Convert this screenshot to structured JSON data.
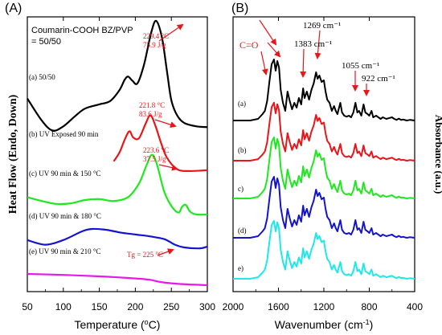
{
  "chart_data": [
    {
      "panel_label": "(A)",
      "type": "line",
      "xlabel": "Temperature (°C)",
      "xlabel_parts": {
        "base": "Temperature (",
        "sup": "o",
        "tail": "C)"
      },
      "ylabel": "Heat Flow (Endo, Down)",
      "xlim": [
        50,
        300
      ],
      "x_ticks": [
        "50",
        "100",
        "150",
        "200",
        "250",
        "300"
      ],
      "grid": false,
      "legend_lines": [
        "Coumarin-COOH BZ/PVP",
        "= 50/50"
      ],
      "series": [
        {
          "name": "(a) 50/50",
          "color": "#000000",
          "points": [
            [
              50,
              -0.6
            ],
            [
              70,
              -1.9
            ],
            [
              85,
              -2.5
            ],
            [
              100,
              -2.25
            ],
            [
              115,
              -1.7
            ],
            [
              130,
              -1.2
            ],
            [
              150,
              -0.95
            ],
            [
              165,
              -0.75
            ],
            [
              178,
              -0.1
            ],
            [
              185,
              0.5
            ],
            [
              190,
              0.7
            ],
            [
              196,
              0.45
            ],
            [
              203,
              0.3
            ],
            [
              212,
              1.4
            ],
            [
              222,
              3.3
            ],
            [
              229,
              4.0
            ],
            [
              237,
              3.0
            ],
            [
              244,
              1.0
            ],
            [
              250,
              -0.7
            ],
            [
              258,
              -1.6
            ],
            [
              268,
              -2.05
            ],
            [
              285,
              -2.25
            ],
            [
              300,
              -2.3
            ]
          ]
        },
        {
          "name": "(b) UV Exposed 90 min",
          "color": "#e8161a",
          "points": [
            [
              170,
              -0.4
            ],
            [
              178,
              0.1
            ],
            [
              186,
              0.9
            ],
            [
              192,
              1.3
            ],
            [
              197,
              0.95
            ],
            [
              205,
              0.9
            ],
            [
              214,
              1.7
            ],
            [
              221,
              2.2
            ],
            [
              228,
              1.6
            ],
            [
              236,
              0.6
            ],
            [
              244,
              -0.2
            ],
            [
              258,
              -0.85
            ],
            [
              275,
              -0.95
            ],
            [
              300,
              -0.9
            ]
          ]
        },
        {
          "name": "(c) UV 90 min & 150 °C",
          "color": "#1ee81e",
          "points": [
            [
              50,
              -0.1
            ],
            [
              70,
              -0.3
            ],
            [
              90,
              -0.45
            ],
            [
              110,
              -0.42
            ],
            [
              130,
              -0.25
            ],
            [
              150,
              -0.2
            ],
            [
              170,
              -0.3
            ],
            [
              190,
              -0.1
            ],
            [
              205,
              0.6
            ],
            [
              215,
              1.5
            ],
            [
              223,
              2.1
            ],
            [
              230,
              1.6
            ],
            [
              240,
              0.2
            ],
            [
              250,
              -0.55
            ],
            [
              260,
              -0.9
            ],
            [
              265,
              -0.6
            ],
            [
              270,
              -0.5
            ],
            [
              276,
              -0.85
            ],
            [
              285,
              -1.0
            ],
            [
              300,
              -1.0
            ]
          ]
        },
        {
          "name": "(d) UV 90 min & 180 °C",
          "color": "#1414cc",
          "points": [
            [
              50,
              -0.6
            ],
            [
              75,
              -0.85
            ],
            [
              100,
              -0.6
            ],
            [
              125,
              -0.15
            ],
            [
              140,
              0.0
            ],
            [
              160,
              -0.05
            ],
            [
              180,
              -0.2
            ],
            [
              200,
              -0.3
            ],
            [
              220,
              -0.4
            ],
            [
              240,
              -0.55
            ],
            [
              255,
              -0.85
            ],
            [
              268,
              -1.0
            ],
            [
              290,
              -1.05
            ],
            [
              300,
              -0.95
            ]
          ]
        },
        {
          "name": "(e) UV 90 min & 210 °C",
          "color": "#e818e8",
          "points": [
            [
              50,
              -0.3
            ],
            [
              100,
              -0.36
            ],
            [
              150,
              -0.45
            ],
            [
              200,
              -0.58
            ],
            [
              220,
              -0.66
            ],
            [
              235,
              -0.8
            ],
            [
              260,
              -0.92
            ],
            [
              300,
              -1.0
            ]
          ]
        }
      ],
      "annotations": [
        {
          "series": "(a) 50/50",
          "lines": [
            "229.4 °C",
            "75.9 J/g"
          ],
          "at": [
            229,
            4.0
          ]
        },
        {
          "series": "(b) UV Exposed 90 min",
          "lines": [
            "221.8 °C",
            "83.6 J/g"
          ],
          "at": [
            221.8,
            2.2
          ]
        },
        {
          "series": "(c) UV 90 min & 150 °C",
          "lines": [
            "223.6 °C",
            "37.5 J/g"
          ],
          "at": [
            223.6,
            2.1
          ]
        },
        {
          "series": "(e) UV 90 min & 210 °C",
          "lines": [
            "Tg = 225 °C"
          ],
          "at": [
            225,
            -0.68
          ]
        }
      ]
    },
    {
      "panel_label": "(B)",
      "type": "line",
      "xlabel": "Wavenumber (cm⁻¹)",
      "xlabel_parts": {
        "base": "Wavenumber (cm",
        "sup": "-1",
        "tail": ")"
      },
      "ylabel": "Absorbance (a.u.)",
      "xlim": [
        2000,
        400
      ],
      "x_reversed": true,
      "x_ticks": [
        "2000",
        "1600",
        "1200",
        "800",
        "400"
      ],
      "grid": false,
      "series": [
        {
          "name": "(a)",
          "color": "#000000"
        },
        {
          "name": "(b)",
          "color": "#e8161a"
        },
        {
          "name": "c)",
          "color": "#1ee81e"
        },
        {
          "name": "(d)",
          "color": "#1414cc"
        },
        {
          "name": "e)",
          "color": "#1ee8e8"
        }
      ],
      "peak_shape": {
        "baseline": [
          [
            2000,
            0.0
          ],
          [
            1850,
            0.0
          ],
          [
            1780,
            0.05
          ],
          [
            1740,
            0.2
          ],
          [
            1720,
            0.3
          ],
          [
            1700,
            0.6
          ],
          [
            1680,
            1.2
          ],
          [
            1660,
            1.75
          ],
          [
            1640,
            1.9
          ],
          [
            1625,
            1.55
          ],
          [
            1610,
            1.85
          ],
          [
            1595,
            1.65
          ],
          [
            1580,
            0.95
          ],
          [
            1560,
            0.55
          ],
          [
            1540,
            0.3
          ],
          [
            1520,
            0.9
          ],
          [
            1500,
            0.6
          ],
          [
            1480,
            0.35
          ],
          [
            1460,
            0.55
          ],
          [
            1440,
            0.4
          ],
          [
            1420,
            0.7
          ],
          [
            1400,
            0.5
          ],
          [
            1383,
            1.0
          ],
          [
            1370,
            0.7
          ],
          [
            1350,
            0.9
          ],
          [
            1330,
            0.65
          ],
          [
            1310,
            0.95
          ],
          [
            1290,
            1.15
          ],
          [
            1269,
            1.5
          ],
          [
            1255,
            1.3
          ],
          [
            1240,
            1.4
          ],
          [
            1220,
            1.2
          ],
          [
            1200,
            1.25
          ],
          [
            1185,
            0.9
          ],
          [
            1170,
            0.65
          ],
          [
            1150,
            0.55
          ],
          [
            1130,
            0.3
          ],
          [
            1110,
            0.45
          ],
          [
            1095,
            0.3
          ],
          [
            1080,
            0.2
          ],
          [
            1070,
            0.35
          ],
          [
            1055,
            0.55
          ],
          [
            1040,
            0.25
          ],
          [
            1020,
            0.15
          ],
          [
            1000,
            0.12
          ],
          [
            980,
            0.15
          ],
          [
            960,
            0.1
          ],
          [
            940,
            0.25
          ],
          [
            922,
            0.55
          ],
          [
            905,
            0.25
          ],
          [
            890,
            0.3
          ],
          [
            870,
            0.15
          ],
          [
            850,
            0.5
          ],
          [
            835,
            0.25
          ],
          [
            815,
            0.2
          ],
          [
            800,
            0.15
          ],
          [
            780,
            0.3
          ],
          [
            765,
            0.1
          ],
          [
            740,
            0.15
          ],
          [
            720,
            0.1
          ],
          [
            700,
            0.05
          ],
          [
            680,
            0.1
          ],
          [
            650,
            0.05
          ],
          [
            620,
            0.08
          ],
          [
            600,
            0.1
          ],
          [
            580,
            0.05
          ],
          [
            560,
            0.02
          ],
          [
            540,
            0.06
          ],
          [
            520,
            0.02
          ],
          [
            500,
            0.03
          ],
          [
            470,
            0.0
          ],
          [
            440,
            0.02
          ],
          [
            400,
            0.0
          ]
        ]
      },
      "annotations": [
        {
          "label": "C=O",
          "color": "#e8161a",
          "at": 1672
        },
        {
          "label": "1269 cm⁻¹",
          "color": "#000000",
          "at": 1269
        },
        {
          "label": "1383 cm⁻¹",
          "color": "#000000",
          "at": 1383
        },
        {
          "label": "1055 cm⁻¹",
          "color": "#000000",
          "at": 1055
        },
        {
          "label": "922 cm⁻¹",
          "color": "#000000",
          "at": 922
        }
      ]
    }
  ]
}
